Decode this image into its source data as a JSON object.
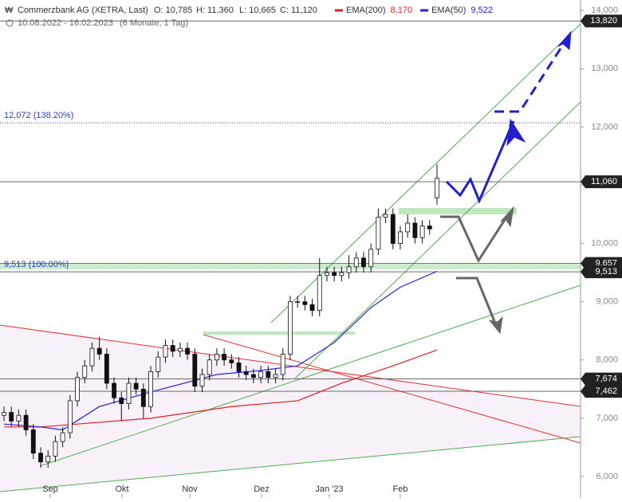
{
  "chart_data": {
    "type": "candlestick",
    "title": "Commerzbank AG (XETRA, Last)",
    "quote": [
      "O: 10,785",
      "H: 11,360",
      "L: 10,665",
      "C: 11,120"
    ],
    "period": "10.08.2022 - 16.02.2023",
    "period_note": "(6 Monate, 1 Tag)",
    "categories": [
      "Sep",
      "Okt",
      "Nov",
      "Dez",
      "Jan '23",
      "Feb"
    ],
    "candles": {
      "open": [
        7.05,
        7.1,
        6.95,
        7.05,
        6.8,
        6.4,
        6.25,
        6.35,
        6.6,
        6.75,
        7.3,
        7.7,
        7.9,
        8.2,
        8.1,
        7.6,
        7.35,
        7.25,
        7.6,
        7.5,
        7.2,
        7.8,
        8.05,
        8.25,
        8.15,
        8.2,
        8.1,
        7.55,
        7.75,
        8.0,
        8.1,
        8.0,
        7.95,
        7.8,
        7.75,
        7.7,
        7.8,
        7.7,
        7.75,
        8.1,
        9.0,
        9.0,
        8.95,
        8.85,
        9.45,
        9.5,
        9.45,
        9.5,
        9.6,
        9.75,
        9.6,
        9.9,
        10.45,
        10.5,
        10.0,
        10.2,
        10.35,
        10.1,
        10.3,
        10.785
      ],
      "high": [
        7.2,
        7.2,
        7.15,
        7.15,
        6.9,
        6.5,
        6.45,
        6.7,
        6.85,
        7.4,
        7.8,
        8.0,
        8.3,
        8.4,
        8.2,
        7.7,
        7.45,
        7.7,
        7.7,
        7.6,
        7.9,
        8.15,
        8.35,
        8.35,
        8.3,
        8.3,
        8.2,
        7.85,
        8.1,
        8.2,
        8.2,
        8.1,
        8.05,
        7.9,
        7.85,
        7.9,
        7.9,
        7.85,
        8.2,
        9.1,
        9.1,
        9.1,
        9.05,
        9.75,
        9.6,
        9.6,
        9.6,
        9.8,
        9.85,
        9.85,
        10.0,
        10.6,
        10.6,
        10.6,
        10.3,
        10.5,
        10.45,
        10.4,
        10.4,
        11.36
      ],
      "low": [
        6.95,
        6.85,
        6.85,
        6.7,
        6.3,
        6.15,
        6.15,
        6.25,
        6.5,
        6.65,
        7.2,
        7.6,
        7.8,
        8.0,
        7.5,
        7.25,
        6.95,
        7.15,
        7.4,
        7.0,
        7.1,
        7.7,
        7.95,
        8.05,
        8.05,
        8.0,
        7.45,
        7.45,
        7.65,
        7.9,
        7.9,
        7.85,
        7.7,
        7.65,
        7.6,
        7.6,
        7.6,
        7.6,
        7.65,
        8.0,
        8.9,
        8.85,
        8.75,
        8.75,
        9.35,
        9.35,
        9.35,
        9.4,
        9.5,
        9.5,
        9.5,
        9.8,
        10.35,
        9.9,
        9.9,
        10.1,
        10.0,
        10.0,
        10.15,
        10.665
      ],
      "close": [
        7.1,
        6.95,
        7.05,
        6.8,
        6.4,
        6.25,
        6.35,
        6.6,
        6.75,
        7.3,
        7.7,
        7.9,
        8.2,
        8.1,
        7.6,
        7.35,
        7.25,
        7.6,
        7.5,
        7.2,
        7.8,
        8.05,
        8.25,
        8.15,
        8.2,
        8.1,
        7.55,
        7.75,
        8.0,
        8.1,
        8.0,
        7.95,
        7.8,
        7.75,
        7.7,
        7.8,
        7.7,
        7.75,
        8.1,
        9.0,
        9.0,
        8.95,
        8.85,
        9.45,
        9.5,
        9.45,
        9.5,
        9.6,
        9.75,
        9.6,
        9.9,
        10.45,
        10.5,
        10.0,
        10.2,
        10.35,
        10.1,
        10.3,
        10.25,
        11.12
      ]
    },
    "series": [
      {
        "name": "EMA(200)",
        "color": "#e02020",
        "last_label": "8,170",
        "x": [
          0,
          5,
          10,
          20,
          31,
          40,
          46,
          53,
          59
        ],
        "values": [
          6.85,
          6.85,
          6.9,
          7.0,
          7.2,
          7.3,
          7.6,
          7.9,
          8.17
        ]
      },
      {
        "name": "EMA(50)",
        "color": "#2020e0",
        "last_label": "9,522",
        "x": [
          0,
          5,
          8,
          13,
          20,
          29,
          35,
          40,
          45,
          50,
          54,
          59
        ],
        "values": [
          6.9,
          6.85,
          6.8,
          7.2,
          7.45,
          7.75,
          7.82,
          7.9,
          8.3,
          8.9,
          9.25,
          9.522
        ]
      }
    ],
    "levels": [
      {
        "value": 13.82,
        "label": "13,820"
      },
      {
        "value": 11.06,
        "label": "11,060"
      },
      {
        "value": 9.657,
        "label": "9,657"
      },
      {
        "value": 9.513,
        "label": "9,513"
      },
      {
        "value": 7.674,
        "label": "7,674"
      },
      {
        "value": 7.462,
        "label": "7,462"
      }
    ],
    "fib_levels": [
      {
        "value": 12.072,
        "label": "12,072 (138.20%)"
      },
      {
        "value": 9.513,
        "label": "9,513 (100.00%)"
      }
    ],
    "ylim": [
      5.63,
      14.18
    ],
    "yticks": [
      {
        "value": 6,
        "label": "6,000"
      },
      {
        "value": 7,
        "label": "7,000"
      },
      {
        "value": 8,
        "label": "8,000"
      },
      {
        "value": 9,
        "label": "9,000"
      },
      {
        "value": 10,
        "label": "10,000"
      },
      {
        "value": 11,
        "label": "11,000"
      },
      {
        "value": 12,
        "label": "12,000"
      },
      {
        "value": 13,
        "label": "13,000"
      },
      {
        "value": 14,
        "label": "14,000"
      }
    ]
  }
}
